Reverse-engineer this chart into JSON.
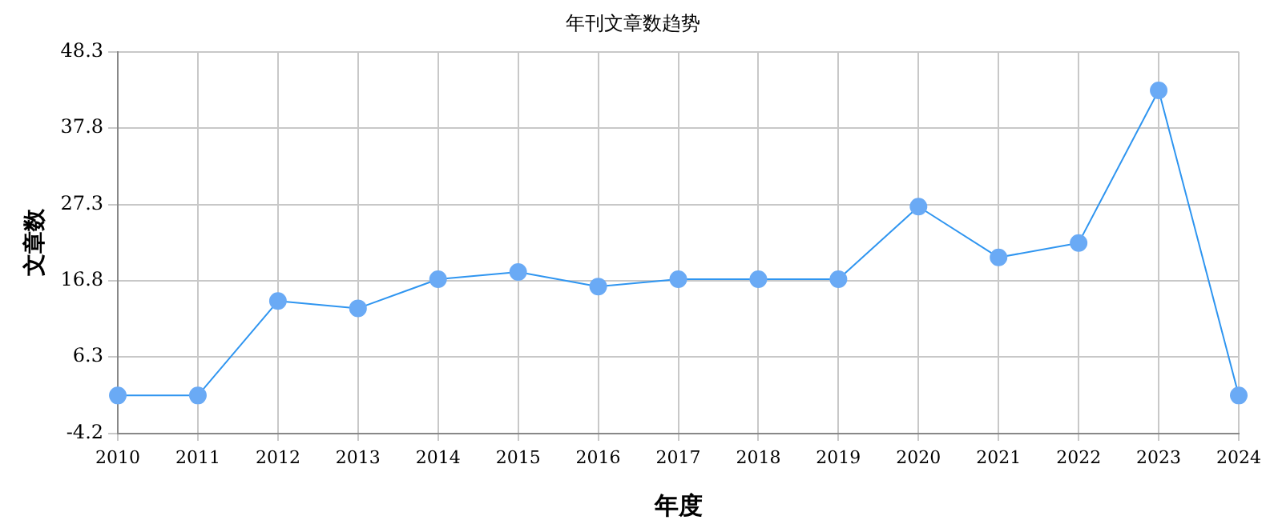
{
  "chart_data": {
    "type": "line",
    "title": "年刊文章数趋势",
    "xlabel": "年度",
    "ylabel": "文章数",
    "categories": [
      "2010",
      "2011",
      "2012",
      "2013",
      "2014",
      "2015",
      "2016",
      "2017",
      "2018",
      "2019",
      "2020",
      "2021",
      "2022",
      "2023",
      "2024"
    ],
    "series": [
      {
        "color": "#2f95f0",
        "values": [
          1,
          1,
          14,
          13,
          17,
          18,
          16,
          17,
          17,
          17,
          27,
          20,
          22,
          43,
          1
        ]
      }
    ],
    "ylim": [
      -4.2,
      48.3
    ],
    "yticks": [
      -4.2,
      6.3,
      16.8,
      27.3,
      37.8,
      48.3
    ],
    "grid": true,
    "legend": false,
    "marker": "circle",
    "line_style": "solid"
  }
}
